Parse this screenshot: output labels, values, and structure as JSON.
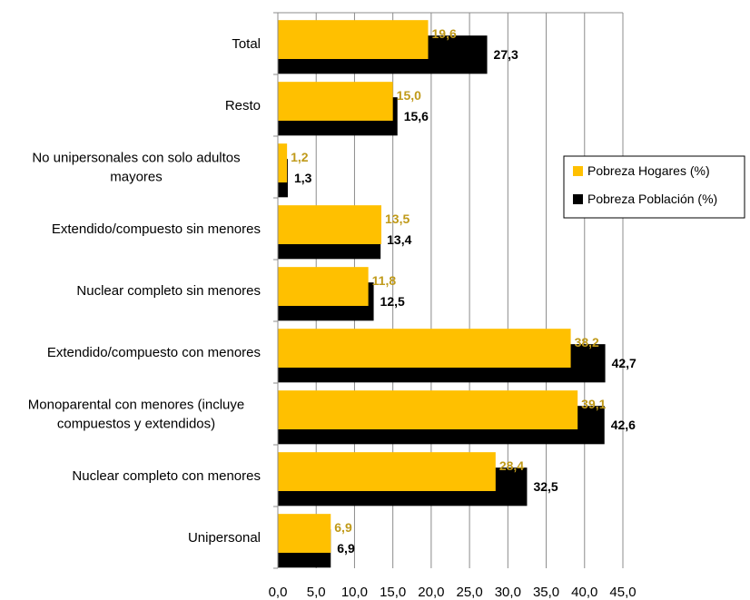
{
  "chart_data": {
    "type": "bar",
    "orientation": "horizontal",
    "categories": [
      "Total",
      "Resto",
      "No unipersonales con solo adultos mayores",
      "Extendido/compuesto sin menores",
      "Nuclear completo sin menores",
      "Extendido/compuesto con menores",
      "Monoparental con menores (incluye compuestos y extendidos)",
      "Nuclear completo con menores",
      "Unipersonal"
    ],
    "category_lines": [
      [
        "Total"
      ],
      [
        "Resto"
      ],
      [
        "No unipersonales con solo adultos",
        "mayores"
      ],
      [
        "Extendido/compuesto sin menores"
      ],
      [
        "Nuclear completo sin menores"
      ],
      [
        "Extendido/compuesto con menores"
      ],
      [
        "Monoparental con menores (incluye",
        "compuestos y extendidos)"
      ],
      [
        "Nuclear completo con menores"
      ],
      [
        "Unipersonal"
      ]
    ],
    "series": [
      {
        "name": "Pobreza Hogares (%)",
        "color": "#FFC000",
        "label_color": "#C09A1A",
        "values": [
          19.6,
          15.0,
          1.2,
          13.5,
          11.8,
          38.2,
          39.1,
          28.4,
          6.9
        ],
        "labels": [
          "19,6",
          "15,0",
          "1,2",
          "13,5",
          "11,8",
          "38,2",
          "39,1",
          "28,4",
          "6,9"
        ]
      },
      {
        "name": "Pobreza Población (%)",
        "color": "#000000",
        "label_color": "#000000",
        "values": [
          27.3,
          15.6,
          1.3,
          13.4,
          12.5,
          42.7,
          42.6,
          32.5,
          6.9
        ],
        "labels": [
          "27,3",
          "15,6",
          "1,3",
          "13,4",
          "12,5",
          "42,7",
          "42,6",
          "32,5",
          "6,9"
        ]
      }
    ],
    "xlim": [
      0,
      45
    ],
    "x_ticks": [
      "0,0",
      "5,0",
      "10,0",
      "15,0",
      "20,0",
      "25,0",
      "30,0",
      "35,0",
      "40,0",
      "45,0"
    ],
    "grid": true,
    "legend_position": "right",
    "title": "",
    "xlabel": "",
    "ylabel": ""
  }
}
